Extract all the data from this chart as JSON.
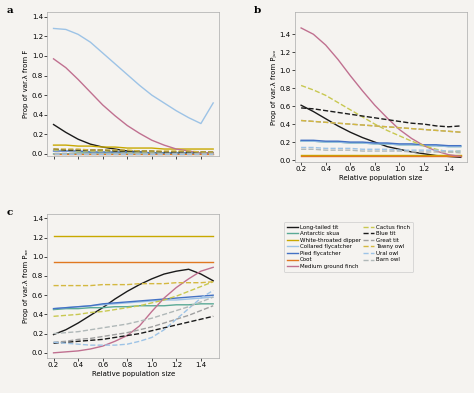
{
  "x": [
    0.2,
    0.3,
    0.4,
    0.5,
    0.6,
    0.7,
    0.8,
    0.9,
    1.0,
    1.1,
    1.2,
    1.3,
    1.4,
    1.5
  ],
  "species": [
    "Long-tailed tit",
    "Antarctic skua",
    "White-throated dipper",
    "Collared flycatcher",
    "Pied flycatcher",
    "Coot",
    "Medium ground finch",
    "Cactus finch",
    "Blue tit",
    "Great tit",
    "Tawny owl",
    "Ural owl",
    "Barn owl"
  ],
  "styles": [
    {
      "color": "#1a1a1a",
      "ls": "-",
      "lw": 1.0
    },
    {
      "color": "#5aaa96",
      "ls": "-",
      "lw": 1.0
    },
    {
      "color": "#c8a800",
      "ls": "-",
      "lw": 1.0
    },
    {
      "color": "#9dc3e6",
      "ls": "-",
      "lw": 1.0
    },
    {
      "color": "#4472c4",
      "ls": "-",
      "lw": 1.0
    },
    {
      "color": "#e07820",
      "ls": "-",
      "lw": 1.0
    },
    {
      "color": "#c07090",
      "ls": "-",
      "lw": 1.0
    },
    {
      "color": "#c8c850",
      "ls": "--",
      "lw": 1.0
    },
    {
      "color": "#1a1a1a",
      "ls": "--",
      "lw": 1.0
    },
    {
      "color": "#a0a0a0",
      "ls": "--",
      "lw": 1.0
    },
    {
      "color": "#d4b840",
      "ls": "--",
      "lw": 1.0
    },
    {
      "color": "#9dc3e6",
      "ls": "--",
      "lw": 1.0
    },
    {
      "color": "#b0b8b8",
      "ls": "--",
      "lw": 1.0
    }
  ],
  "panel_a": {
    "title": "a",
    "ylabel": "Prop of var.λ from F",
    "ylim": [
      -0.02,
      1.45
    ],
    "yticks": [
      0.0,
      0.2,
      0.4,
      0.6,
      0.8,
      1.0,
      1.2,
      1.4
    ],
    "curves": {
      "Long-tailed tit": [
        0.3,
        0.22,
        0.15,
        0.1,
        0.07,
        0.05,
        0.03,
        0.02,
        0.01,
        0.01,
        0.0,
        0.0,
        0.0,
        0.0
      ],
      "Antarctic skua": [
        0.0,
        0.0,
        0.01,
        0.01,
        0.01,
        0.01,
        0.01,
        0.01,
        0.01,
        0.01,
        0.01,
        0.01,
        0.01,
        0.01
      ],
      "White-throated dipper": [
        0.09,
        0.09,
        0.08,
        0.08,
        0.07,
        0.07,
        0.06,
        0.06,
        0.06,
        0.05,
        0.05,
        0.05,
        0.05,
        0.05
      ],
      "Collared flycatcher": [
        1.28,
        1.27,
        1.22,
        1.14,
        1.03,
        0.92,
        0.81,
        0.7,
        0.6,
        0.52,
        0.44,
        0.37,
        0.31,
        0.52
      ],
      "Pied flycatcher": [
        0.03,
        0.03,
        0.03,
        0.02,
        0.02,
        0.02,
        0.02,
        0.02,
        0.01,
        0.01,
        0.01,
        0.01,
        0.01,
        0.01
      ],
      "Coot": [
        0.0,
        0.0,
        0.0,
        0.0,
        0.0,
        0.0,
        0.0,
        0.0,
        0.0,
        0.0,
        0.0,
        0.0,
        0.0,
        0.0
      ],
      "Medium ground finch": [
        0.97,
        0.88,
        0.76,
        0.63,
        0.5,
        0.39,
        0.29,
        0.21,
        0.14,
        0.09,
        0.05,
        0.03,
        0.01,
        0.01
      ],
      "Cactus finch": [
        0.04,
        0.04,
        0.03,
        0.03,
        0.03,
        0.03,
        0.02,
        0.02,
        0.02,
        0.02,
        0.02,
        0.02,
        0.02,
        0.01
      ],
      "Blue tit": [
        0.05,
        0.04,
        0.04,
        0.04,
        0.04,
        0.03,
        0.03,
        0.03,
        0.03,
        0.02,
        0.02,
        0.02,
        0.02,
        0.02
      ],
      "Great tit": [
        0.01,
        0.01,
        0.01,
        0.01,
        0.01,
        0.01,
        0.01,
        0.01,
        0.01,
        0.01,
        0.01,
        0.01,
        0.01,
        0.01
      ],
      "Tawny owl": [
        0.05,
        0.05,
        0.05,
        0.04,
        0.04,
        0.04,
        0.04,
        0.03,
        0.03,
        0.03,
        0.03,
        0.03,
        0.02,
        0.02
      ],
      "Ural owl": [
        0.0,
        0.0,
        0.0,
        0.0,
        0.0,
        0.0,
        0.0,
        0.0,
        0.0,
        0.0,
        0.0,
        0.0,
        0.0,
        0.0
      ],
      "Barn owl": [
        0.01,
        0.01,
        0.01,
        0.01,
        0.01,
        0.01,
        0.01,
        0.01,
        0.01,
        0.01,
        0.01,
        0.01,
        0.01,
        0.01
      ]
    }
  },
  "panel_b": {
    "title": "b",
    "ylabel": "Prop of var.λ from Pⱼᵤᵥ",
    "ylim": [
      -0.02,
      1.65
    ],
    "yticks": [
      0.0,
      0.2,
      0.4,
      0.6,
      0.8,
      1.0,
      1.2,
      1.4
    ],
    "curves": {
      "Long-tailed tit": [
        0.61,
        0.54,
        0.46,
        0.38,
        0.31,
        0.25,
        0.2,
        0.15,
        0.12,
        0.09,
        0.07,
        0.05,
        0.04,
        0.03
      ],
      "Antarctic skua": [
        0.21,
        0.21,
        0.2,
        0.2,
        0.19,
        0.19,
        0.18,
        0.18,
        0.17,
        0.17,
        0.16,
        0.16,
        0.15,
        0.15
      ],
      "White-throated dipper": [
        0.06,
        0.06,
        0.06,
        0.06,
        0.06,
        0.06,
        0.06,
        0.06,
        0.06,
        0.06,
        0.06,
        0.06,
        0.06,
        0.06
      ],
      "Collared flycatcher": [
        0.21,
        0.21,
        0.2,
        0.2,
        0.19,
        0.19,
        0.18,
        0.18,
        0.17,
        0.17,
        0.16,
        0.16,
        0.15,
        0.15
      ],
      "Pied flycatcher": [
        0.22,
        0.22,
        0.21,
        0.21,
        0.2,
        0.2,
        0.19,
        0.19,
        0.18,
        0.18,
        0.17,
        0.17,
        0.16,
        0.16
      ],
      "Coot": [
        0.05,
        0.05,
        0.05,
        0.05,
        0.05,
        0.05,
        0.05,
        0.05,
        0.05,
        0.05,
        0.05,
        0.05,
        0.05,
        0.05
      ],
      "Medium ground finch": [
        1.47,
        1.4,
        1.28,
        1.12,
        0.94,
        0.77,
        0.61,
        0.47,
        0.34,
        0.24,
        0.16,
        0.1,
        0.06,
        0.04
      ],
      "Cactus finch": [
        0.83,
        0.78,
        0.72,
        0.64,
        0.56,
        0.48,
        0.4,
        0.33,
        0.27,
        0.21,
        0.16,
        0.12,
        0.09,
        0.1
      ],
      "Blue tit": [
        0.58,
        0.57,
        0.55,
        0.53,
        0.51,
        0.49,
        0.47,
        0.45,
        0.43,
        0.41,
        0.4,
        0.38,
        0.37,
        0.38
      ],
      "Great tit": [
        0.44,
        0.43,
        0.42,
        0.41,
        0.4,
        0.39,
        0.38,
        0.37,
        0.36,
        0.35,
        0.34,
        0.33,
        0.32,
        0.31
      ],
      "Tawny owl": [
        0.44,
        0.43,
        0.42,
        0.41,
        0.4,
        0.39,
        0.38,
        0.37,
        0.36,
        0.35,
        0.34,
        0.33,
        0.32,
        0.31
      ],
      "Ural owl": [
        0.14,
        0.14,
        0.13,
        0.13,
        0.13,
        0.12,
        0.12,
        0.12,
        0.11,
        0.11,
        0.11,
        0.11,
        0.1,
        0.1
      ],
      "Barn owl": [
        0.12,
        0.12,
        0.11,
        0.11,
        0.11,
        0.1,
        0.1,
        0.1,
        0.1,
        0.09,
        0.09,
        0.09,
        0.09,
        0.08
      ]
    }
  },
  "panel_c": {
    "title": "c",
    "ylabel": "Prop of var.λ from Pₐₑ",
    "ylim": [
      -0.05,
      1.45
    ],
    "yticks": [
      0.0,
      0.2,
      0.4,
      0.6,
      0.8,
      1.0,
      1.2,
      1.4
    ],
    "curves": {
      "Long-tailed tit": [
        0.19,
        0.24,
        0.31,
        0.39,
        0.47,
        0.56,
        0.64,
        0.71,
        0.77,
        0.82,
        0.85,
        0.87,
        0.82,
        0.75
      ],
      "Antarctic skua": [
        0.45,
        0.46,
        0.46,
        0.47,
        0.47,
        0.48,
        0.48,
        0.49,
        0.49,
        0.49,
        0.5,
        0.5,
        0.51,
        0.51
      ],
      "White-throated dipper": [
        1.22,
        1.22,
        1.22,
        1.22,
        1.22,
        1.22,
        1.22,
        1.22,
        1.22,
        1.22,
        1.22,
        1.22,
        1.22,
        1.22
      ],
      "Collared flycatcher": [
        0.46,
        0.47,
        0.48,
        0.49,
        0.5,
        0.51,
        0.52,
        0.53,
        0.54,
        0.55,
        0.55,
        0.56,
        0.57,
        0.58
      ],
      "Pied flycatcher": [
        0.46,
        0.47,
        0.48,
        0.49,
        0.51,
        0.52,
        0.53,
        0.54,
        0.55,
        0.56,
        0.57,
        0.58,
        0.59,
        0.6
      ],
      "Coot": [
        0.95,
        0.95,
        0.95,
        0.95,
        0.95,
        0.95,
        0.95,
        0.95,
        0.95,
        0.95,
        0.95,
        0.95,
        0.95,
        0.95
      ],
      "Medium ground finch": [
        0.0,
        0.01,
        0.02,
        0.04,
        0.07,
        0.12,
        0.18,
        0.28,
        0.43,
        0.57,
        0.68,
        0.77,
        0.85,
        0.89
      ],
      "Cactus finch": [
        0.38,
        0.39,
        0.4,
        0.42,
        0.43,
        0.45,
        0.47,
        0.49,
        0.52,
        0.55,
        0.59,
        0.64,
        0.69,
        0.74
      ],
      "Blue tit": [
        0.1,
        0.11,
        0.12,
        0.13,
        0.14,
        0.16,
        0.18,
        0.2,
        0.23,
        0.26,
        0.29,
        0.32,
        0.35,
        0.38
      ],
      "Great tit": [
        0.11,
        0.12,
        0.14,
        0.15,
        0.17,
        0.19,
        0.21,
        0.24,
        0.27,
        0.31,
        0.35,
        0.39,
        0.44,
        0.49
      ],
      "Tawny owl": [
        0.7,
        0.7,
        0.7,
        0.7,
        0.71,
        0.71,
        0.71,
        0.72,
        0.72,
        0.72,
        0.73,
        0.73,
        0.73,
        0.74
      ],
      "Ural owl": [
        0.11,
        0.1,
        0.09,
        0.08,
        0.08,
        0.08,
        0.09,
        0.12,
        0.16,
        0.24,
        0.35,
        0.46,
        0.57,
        0.65
      ],
      "Barn owl": [
        0.2,
        0.21,
        0.22,
        0.24,
        0.26,
        0.28,
        0.3,
        0.33,
        0.36,
        0.4,
        0.44,
        0.48,
        0.53,
        0.58
      ]
    }
  },
  "legend_left": [
    "Long-tailed tit",
    "Antarctic skua",
    "White-throated dipper",
    "Collared flycatcher",
    "Pied flycatcher",
    "Coot",
    "Medium ground finch"
  ],
  "legend_right": [
    "Cactus finch",
    "Blue tit",
    "Great tit",
    "Tawny owl",
    "Ural owl",
    "Barn owl"
  ],
  "bg_color": "#f5f3f0"
}
